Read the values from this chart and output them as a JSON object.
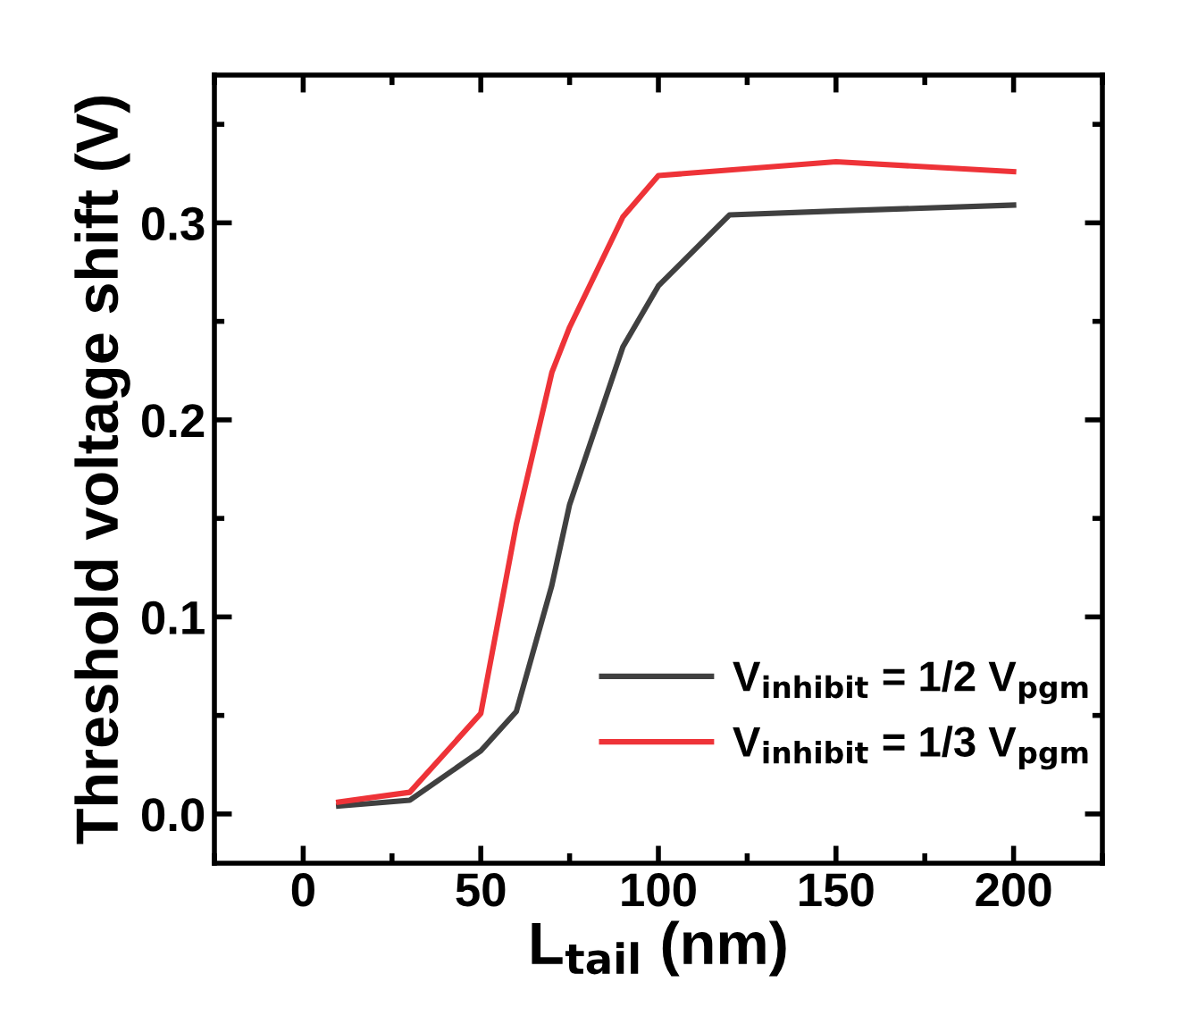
{
  "chart_data": {
    "type": "line",
    "xlabel": "L$_{tail}$ (nm)",
    "ylabel": "Threshold voltage shift (V)",
    "xlim": [
      -25,
      225
    ],
    "ylim": [
      -0.025,
      0.375
    ],
    "xticks": [
      0,
      50,
      100,
      150,
      200
    ],
    "yticks": [
      {
        "value": 0,
        "label": "0.0"
      },
      0.1,
      0.2,
      0.3
    ],
    "series": [
      {
        "name": "V$_{inhibit}$ = 1/2 V$_{pgm}$",
        "color": "#404040",
        "x": [
          10,
          30,
          50,
          60,
          70,
          75,
          90,
          100,
          120,
          150,
          200
        ],
        "values": [
          0.004,
          0.007,
          0.032,
          0.052,
          0.116,
          0.157,
          0.237,
          0.268,
          0.304,
          0.306,
          0.309
        ]
      },
      {
        "name": "V$_{inhibit}$ = 1/3 V$_{pgm}$",
        "color": "#ee3338",
        "x": [
          10,
          30,
          50,
          60,
          70,
          75,
          90,
          100,
          150,
          200
        ],
        "values": [
          0.006,
          0.011,
          0.051,
          0.147,
          0.224,
          0.247,
          0.303,
          0.324,
          0.331,
          0.326
        ]
      }
    ],
    "legend": "bottom right",
    "grid": false,
    "marker": "none",
    "line_style": "solid"
  }
}
